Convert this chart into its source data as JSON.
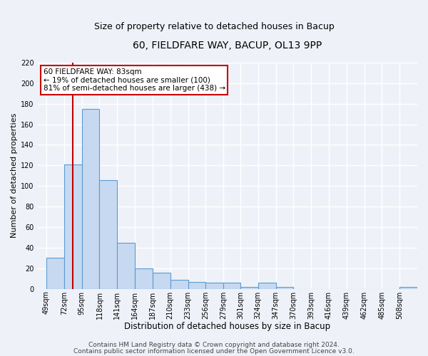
{
  "title": "60, FIELDFARE WAY, BACUP, OL13 9PP",
  "subtitle": "Size of property relative to detached houses in Bacup",
  "xlabel": "Distribution of detached houses by size in Bacup",
  "ylabel": "Number of detached properties",
  "bin_labels": [
    "49sqm",
    "72sqm",
    "95sqm",
    "118sqm",
    "141sqm",
    "164sqm",
    "187sqm",
    "210sqm",
    "233sqm",
    "256sqm",
    "279sqm",
    "301sqm",
    "324sqm",
    "347sqm",
    "370sqm",
    "393sqm",
    "416sqm",
    "439sqm",
    "462sqm",
    "485sqm",
    "508sqm"
  ],
  "bar_heights": [
    30,
    121,
    175,
    106,
    45,
    20,
    16,
    9,
    7,
    6,
    6,
    2,
    6,
    2,
    0,
    0,
    0,
    0,
    0,
    0,
    2
  ],
  "bar_color": "#c6d9f0",
  "bar_edgecolor": "#5b9bd5",
  "bar_linewidth": 0.8,
  "vline_x": 83,
  "vline_color": "#c00000",
  "vline_linewidth": 1.5,
  "annotation_text": "60 FIELDFARE WAY: 83sqm\n← 19% of detached houses are smaller (100)\n81% of semi-detached houses are larger (438) →",
  "ylim": [
    0,
    220
  ],
  "yticks": [
    0,
    20,
    40,
    60,
    80,
    100,
    120,
    140,
    160,
    180,
    200,
    220
  ],
  "bin_edges": [
    49,
    72,
    95,
    118,
    141,
    164,
    187,
    210,
    233,
    256,
    279,
    301,
    324,
    347,
    370,
    393,
    416,
    439,
    462,
    485,
    508,
    531
  ],
  "footer_line1": "Contains HM Land Registry data © Crown copyright and database right 2024.",
  "footer_line2": "Contains public sector information licensed under the Open Government Licence v3.0.",
  "background_color": "#eef2f8",
  "grid_color": "#ffffff",
  "title_fontsize": 10,
  "subtitle_fontsize": 9,
  "xlabel_fontsize": 8.5,
  "ylabel_fontsize": 8,
  "tick_fontsize": 7,
  "annotation_fontsize": 7.5,
  "footer_fontsize": 6.5
}
